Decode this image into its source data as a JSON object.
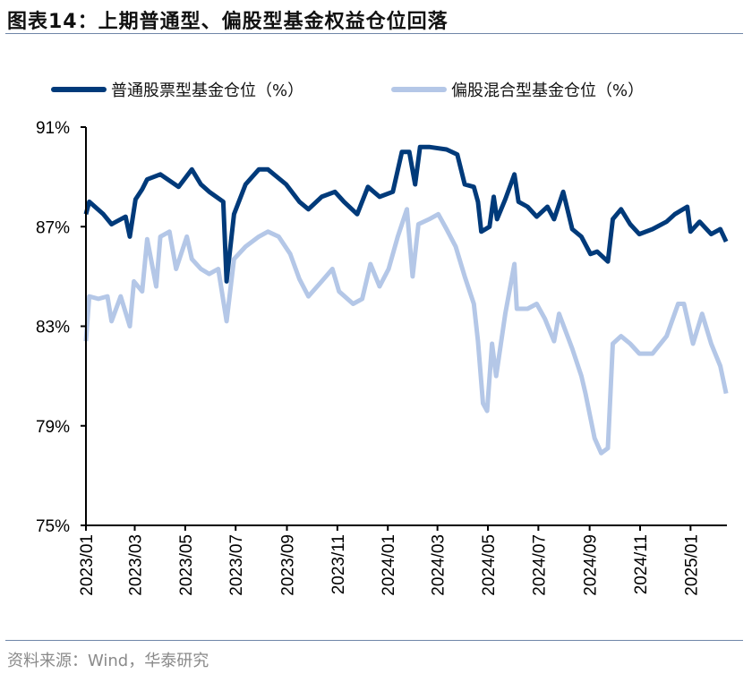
{
  "title": "图表14：上期普通型、偏股型基金权益仓位回落",
  "source": "资料来源：Wind，华泰研究",
  "chart_data": {
    "type": "line",
    "title": "",
    "xlabel": "",
    "ylabel": "",
    "ylim": [
      75,
      91
    ],
    "yticks": [
      "75%",
      "79%",
      "83%",
      "87%",
      "91%"
    ],
    "ytick_values": [
      75,
      79,
      83,
      87,
      91
    ],
    "xlim": [
      "2023-01-01",
      "2025-02-14"
    ],
    "xticks": [
      "2023/01",
      "2023/03",
      "2023/05",
      "2023/07",
      "2023/09",
      "2023/11",
      "2024/01",
      "2024/03",
      "2024/05",
      "2024/07",
      "2024/09",
      "2024/11",
      "2025/01"
    ],
    "xtick_dates": [
      "2023-01-01",
      "2023-03-01",
      "2023-05-01",
      "2023-07-01",
      "2023-09-01",
      "2023-11-01",
      "2024-01-01",
      "2024-03-01",
      "2024-05-01",
      "2024-07-01",
      "2024-09-01",
      "2024-11-01",
      "2025-01-01"
    ],
    "grid": false,
    "legend_position": "top",
    "series": [
      {
        "name": "普通股票型基金仓位（%）",
        "color": "#003a7a",
        "points": [
          [
            "2023-01-01",
            87.5
          ],
          [
            "2023-01-05",
            88.0
          ],
          [
            "2023-01-22",
            87.5
          ],
          [
            "2023-02-01",
            87.1
          ],
          [
            "2023-02-18",
            87.4
          ],
          [
            "2023-02-23",
            86.6
          ],
          [
            "2023-03-02",
            88.1
          ],
          [
            "2023-03-10",
            88.5
          ],
          [
            "2023-03-16",
            88.9
          ],
          [
            "2023-04-01",
            89.1
          ],
          [
            "2023-04-23",
            88.6
          ],
          [
            "2023-05-09",
            89.3
          ],
          [
            "2023-05-20",
            88.7
          ],
          [
            "2023-05-30",
            88.4
          ],
          [
            "2023-06-16",
            88.0
          ],
          [
            "2023-06-20",
            84.8
          ],
          [
            "2023-06-29",
            87.5
          ],
          [
            "2023-07-13",
            88.7
          ],
          [
            "2023-07-29",
            89.3
          ],
          [
            "2023-08-09",
            89.3
          ],
          [
            "2023-08-31",
            88.7
          ],
          [
            "2023-09-16",
            88.0
          ],
          [
            "2023-09-27",
            87.7
          ],
          [
            "2023-10-13",
            88.2
          ],
          [
            "2023-10-29",
            88.4
          ],
          [
            "2023-11-09",
            88.0
          ],
          [
            "2023-11-25",
            87.5
          ],
          [
            "2023-12-08",
            88.6
          ],
          [
            "2023-12-22",
            88.2
          ],
          [
            "2024-01-07",
            88.4
          ],
          [
            "2024-01-18",
            90.0
          ],
          [
            "2024-01-27",
            90.0
          ],
          [
            "2024-02-03",
            88.7
          ],
          [
            "2024-02-09",
            90.2
          ],
          [
            "2024-02-20",
            90.2
          ],
          [
            "2024-03-12",
            90.1
          ],
          [
            "2024-03-25",
            89.9
          ],
          [
            "2024-04-03",
            88.7
          ],
          [
            "2024-04-14",
            88.6
          ],
          [
            "2024-04-19",
            88.0
          ],
          [
            "2024-04-23",
            86.8
          ],
          [
            "2024-05-03",
            87.0
          ],
          [
            "2024-05-08",
            88.2
          ],
          [
            "2024-05-12",
            87.3
          ],
          [
            "2024-05-22",
            88.1
          ],
          [
            "2024-06-02",
            89.1
          ],
          [
            "2024-06-07",
            88.0
          ],
          [
            "2024-06-18",
            87.8
          ],
          [
            "2024-06-29",
            87.4
          ],
          [
            "2024-07-12",
            87.8
          ],
          [
            "2024-07-20",
            87.3
          ],
          [
            "2024-07-31",
            88.4
          ],
          [
            "2024-08-11",
            86.9
          ],
          [
            "2024-08-22",
            86.6
          ],
          [
            "2024-09-02",
            85.9
          ],
          [
            "2024-09-10",
            86.0
          ],
          [
            "2024-09-23",
            85.6
          ],
          [
            "2024-09-29",
            87.3
          ],
          [
            "2024-10-09",
            87.7
          ],
          [
            "2024-10-20",
            87.1
          ],
          [
            "2024-10-31",
            86.7
          ],
          [
            "2024-11-16",
            86.9
          ],
          [
            "2024-12-03",
            87.2
          ],
          [
            "2024-12-13",
            87.5
          ],
          [
            "2024-12-28",
            87.8
          ],
          [
            "2025-01-01",
            86.8
          ],
          [
            "2025-01-12",
            87.2
          ],
          [
            "2025-01-26",
            86.7
          ],
          [
            "2025-02-06",
            86.9
          ],
          [
            "2025-02-13",
            86.4
          ]
        ]
      },
      {
        "name": "偏股混合型基金仓位（%）",
        "color": "#b4c7e7",
        "points": [
          [
            "2023-01-01",
            82.4
          ],
          [
            "2023-01-05",
            84.2
          ],
          [
            "2023-01-16",
            84.1
          ],
          [
            "2023-01-27",
            84.2
          ],
          [
            "2023-02-01",
            83.2
          ],
          [
            "2023-02-12",
            84.2
          ],
          [
            "2023-02-23",
            83.0
          ],
          [
            "2023-02-28",
            84.8
          ],
          [
            "2023-03-10",
            84.4
          ],
          [
            "2023-03-16",
            86.5
          ],
          [
            "2023-03-27",
            84.6
          ],
          [
            "2023-04-01",
            86.6
          ],
          [
            "2023-04-12",
            86.8
          ],
          [
            "2023-04-20",
            85.3
          ],
          [
            "2023-05-03",
            86.6
          ],
          [
            "2023-05-09",
            85.7
          ],
          [
            "2023-05-20",
            85.3
          ],
          [
            "2023-05-30",
            85.1
          ],
          [
            "2023-06-10",
            85.3
          ],
          [
            "2023-06-20",
            83.2
          ],
          [
            "2023-06-29",
            85.7
          ],
          [
            "2023-07-13",
            86.2
          ],
          [
            "2023-07-29",
            86.6
          ],
          [
            "2023-08-09",
            86.8
          ],
          [
            "2023-08-22",
            86.6
          ],
          [
            "2023-09-05",
            85.9
          ],
          [
            "2023-09-16",
            84.9
          ],
          [
            "2023-09-27",
            84.2
          ],
          [
            "2023-10-13",
            84.8
          ],
          [
            "2023-10-26",
            85.3
          ],
          [
            "2023-11-03",
            84.4
          ],
          [
            "2023-11-20",
            83.9
          ],
          [
            "2023-12-01",
            84.1
          ],
          [
            "2023-12-11",
            85.5
          ],
          [
            "2023-12-22",
            84.6
          ],
          [
            "2024-01-02",
            85.3
          ],
          [
            "2024-01-13",
            86.6
          ],
          [
            "2024-01-24",
            87.7
          ],
          [
            "2024-01-31",
            85.0
          ],
          [
            "2024-02-07",
            87.1
          ],
          [
            "2024-02-20",
            87.3
          ],
          [
            "2024-03-02",
            87.5
          ],
          [
            "2024-03-12",
            86.9
          ],
          [
            "2024-03-23",
            86.2
          ],
          [
            "2024-04-03",
            85.0
          ],
          [
            "2024-04-14",
            83.9
          ],
          [
            "2024-04-19",
            82.4
          ],
          [
            "2024-04-25",
            79.9
          ],
          [
            "2024-04-30",
            79.6
          ],
          [
            "2024-05-06",
            82.3
          ],
          [
            "2024-05-11",
            81.0
          ],
          [
            "2024-05-22",
            83.5
          ],
          [
            "2024-06-02",
            85.5
          ],
          [
            "2024-06-05",
            83.7
          ],
          [
            "2024-06-18",
            83.7
          ],
          [
            "2024-06-29",
            83.9
          ],
          [
            "2024-07-09",
            83.3
          ],
          [
            "2024-07-20",
            82.4
          ],
          [
            "2024-07-26",
            83.5
          ],
          [
            "2024-08-11",
            82.1
          ],
          [
            "2024-08-22",
            81.0
          ],
          [
            "2024-08-27",
            80.3
          ],
          [
            "2024-09-07",
            78.5
          ],
          [
            "2024-09-15",
            77.9
          ],
          [
            "2024-09-23",
            78.1
          ],
          [
            "2024-09-29",
            82.3
          ],
          [
            "2024-10-09",
            82.6
          ],
          [
            "2024-10-20",
            82.3
          ],
          [
            "2024-10-31",
            81.9
          ],
          [
            "2024-11-16",
            81.9
          ],
          [
            "2024-12-03",
            82.6
          ],
          [
            "2024-12-17",
            83.9
          ],
          [
            "2024-12-24",
            83.9
          ],
          [
            "2025-01-04",
            82.3
          ],
          [
            "2025-01-15",
            83.5
          ],
          [
            "2025-01-26",
            82.3
          ],
          [
            "2025-02-06",
            81.4
          ],
          [
            "2025-02-13",
            80.3
          ]
        ]
      }
    ]
  }
}
